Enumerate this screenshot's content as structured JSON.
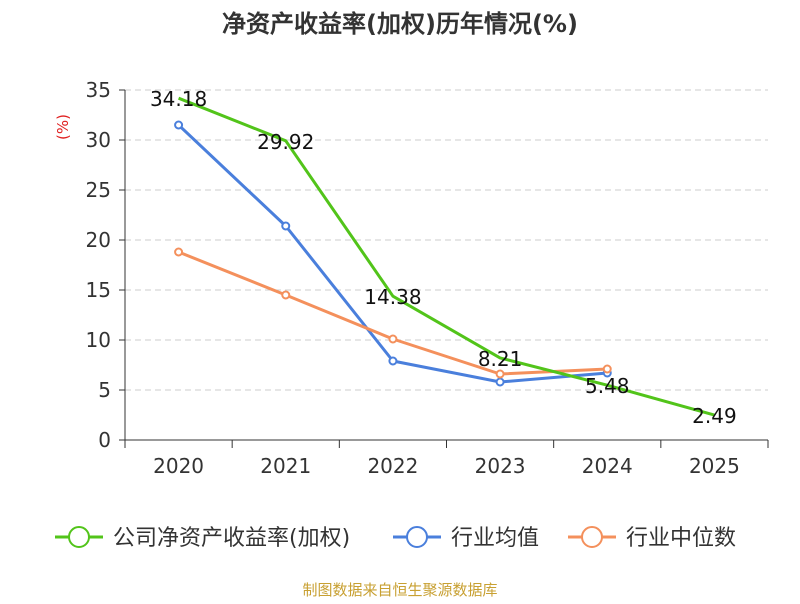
{
  "chart_data": {
    "type": "line",
    "title": "净资产收益率(加权)历年情况(%)",
    "ylabel": "(%)",
    "xlabel": "",
    "categories": [
      "2020",
      "2021",
      "2022",
      "2023",
      "2024",
      "2025"
    ],
    "ylim": [
      0,
      35
    ],
    "yticks": [
      0,
      5,
      10,
      15,
      20,
      25,
      30,
      35
    ],
    "grid": true,
    "legend_position": "bottom",
    "series": [
      {
        "name": "公司净资产收益率(加权)",
        "color": "#52c41a",
        "values": [
          34.18,
          29.92,
          14.38,
          8.21,
          5.48,
          2.49
        ],
        "labels": [
          "34.18",
          "29.92",
          "14.38",
          "8.21",
          "5.48",
          "2.49"
        ],
        "markers": false
      },
      {
        "name": "行业均值",
        "color": "#4a7fdc",
        "values": [
          31.5,
          21.4,
          7.9,
          5.8,
          6.7,
          null
        ],
        "markers": true
      },
      {
        "name": "行业中位数",
        "color": "#f4905c",
        "values": [
          18.8,
          14.5,
          10.1,
          6.6,
          7.1,
          null
        ],
        "markers": true
      }
    ],
    "footer": "制图数据来自恒生聚源数据库",
    "colors": {
      "axis": "#333333",
      "grid": "#cccccc",
      "ylabel": "#e02020",
      "footer": "#c8a032",
      "title": "#333333"
    }
  }
}
